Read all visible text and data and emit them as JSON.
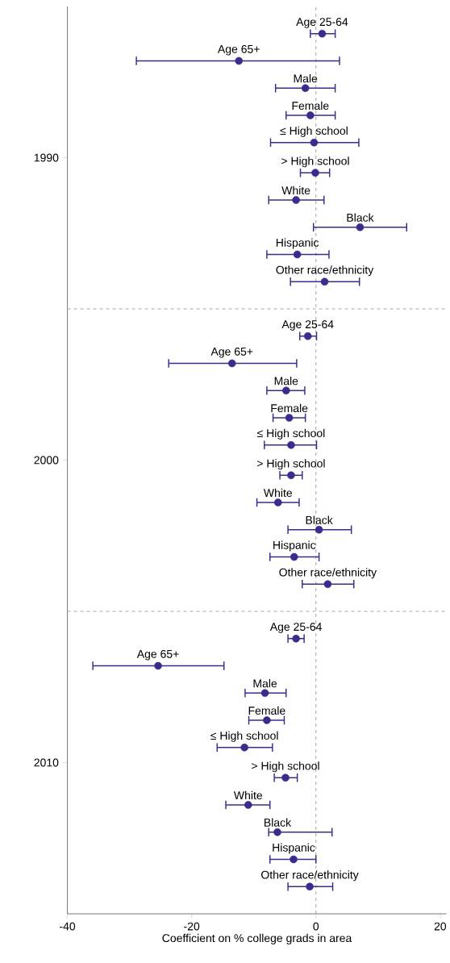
{
  "chart_data": {
    "type": "scatter",
    "xlabel": "Coefficient on % college grads in area",
    "xlim": [
      -40,
      21
    ],
    "xticks": [
      -40,
      -20,
      0,
      20
    ],
    "ylim": [
      2015,
      1985
    ],
    "yticks": [
      1990,
      2000,
      2010
    ],
    "marker": "circle",
    "grid": false,
    "ref_lines": [
      {
        "axis": "x",
        "value": 0,
        "line_style": "dashed",
        "color": "#a8a8a8"
      },
      {
        "axis": "y",
        "value": 1995,
        "line_style": "dashed",
        "color": "#a8a8a8"
      },
      {
        "axis": "y",
        "value": 2005,
        "line_style": "dashed",
        "color": "#a8a8a8"
      }
    ],
    "series": [
      {
        "color": "#3a2c8c",
        "x": [
          1.0,
          -12.4,
          -1.7,
          -0.9,
          -0.3,
          -0.1,
          -3.2,
          7.1,
          -3.0,
          1.4,
          -1.3,
          -13.5,
          -4.8,
          -4.3,
          -4.0,
          -4.0,
          -6.1,
          0.5,
          -3.5,
          1.9,
          -3.2,
          -25.4,
          -8.2,
          -7.9,
          -11.5,
          -4.9,
          -10.9,
          -6.2,
          -3.6,
          -1.0
        ],
        "values": [
          1985.9,
          1986.8,
          1987.7,
          1988.6,
          1989.5,
          1990.5,
          1991.4,
          1992.3,
          1993.2,
          1994.1,
          1995.9,
          1996.8,
          1997.7,
          1998.6,
          1999.5,
          2000.5,
          2001.4,
          2002.3,
          2003.2,
          2004.1,
          2005.9,
          2006.8,
          2007.7,
          2008.6,
          2009.5,
          2010.5,
          2011.4,
          2012.3,
          2013.2,
          2014.1
        ],
        "xerrors": [
          [
            -0.9,
            3.1
          ],
          [
            -28.9,
            3.8
          ],
          [
            -6.5,
            3.1
          ],
          [
            -4.8,
            3.1
          ],
          [
            -7.3,
            6.9
          ],
          [
            -2.5,
            2.2
          ],
          [
            -7.6,
            1.3
          ],
          [
            -0.4,
            14.6
          ],
          [
            -7.9,
            2.1
          ],
          [
            -4.1,
            7.0
          ],
          [
            -2.6,
            0.1
          ],
          [
            -23.7,
            -3.1
          ],
          [
            -7.9,
            -1.8
          ],
          [
            -6.9,
            -1.7
          ],
          [
            -8.3,
            0.1
          ],
          [
            -5.8,
            -2.2
          ],
          [
            -9.5,
            -2.7
          ],
          [
            -4.5,
            5.7
          ],
          [
            -7.4,
            0.5
          ],
          [
            -2.2,
            6.1
          ],
          [
            -4.5,
            -1.9
          ],
          [
            -35.9,
            -14.8
          ],
          [
            -11.4,
            -4.8
          ],
          [
            -10.8,
            -5.1
          ],
          [
            -15.9,
            -7.0
          ],
          [
            -6.7,
            -3.0
          ],
          [
            -14.5,
            -7.4
          ],
          [
            -7.6,
            2.6
          ],
          [
            -7.4,
            0.0
          ],
          [
            -4.5,
            2.7
          ]
        ]
      }
    ],
    "annotations": [
      {
        "text": "Age 25-64",
        "x": 1.0,
        "y": 1985.9
      },
      {
        "text": "Age 65+",
        "x": -12.4,
        "y": 1986.8
      },
      {
        "text": "Male",
        "x": -1.7,
        "y": 1987.7
      },
      {
        "text": "Female",
        "x": -0.9,
        "y": 1988.6
      },
      {
        "text": "≤ High school",
        "x": -0.3,
        "y": 1989.5
      },
      {
        "text": "> High school",
        "x": -0.1,
        "y": 1990.5
      },
      {
        "text": "White",
        "x": -3.2,
        "y": 1991.4
      },
      {
        "text": "Black",
        "x": 7.1,
        "y": 1992.3
      },
      {
        "text": "Hispanic",
        "x": -3.0,
        "y": 1993.2
      },
      {
        "text": "Other race/ethnicity",
        "x": 1.4,
        "y": 1994.1
      },
      {
        "text": "Age 25-64",
        "x": -1.3,
        "y": 1995.9
      },
      {
        "text": "Age 65+",
        "x": -13.5,
        "y": 1996.8
      },
      {
        "text": "Male",
        "x": -4.8,
        "y": 1997.7
      },
      {
        "text": "Female",
        "x": -4.3,
        "y": 1998.6
      },
      {
        "text": "≤ High school",
        "x": -4.0,
        "y": 1999.5
      },
      {
        "text": "> High school",
        "x": -4.0,
        "y": 2000.5
      },
      {
        "text": "White",
        "x": -6.1,
        "y": 2001.4
      },
      {
        "text": "Black",
        "x": 0.5,
        "y": 2002.3
      },
      {
        "text": "Hispanic",
        "x": -3.5,
        "y": 2003.2
      },
      {
        "text": "Other race/ethnicity",
        "x": 1.9,
        "y": 2004.1
      },
      {
        "text": "Age 25-64",
        "x": -3.2,
        "y": 2005.9
      },
      {
        "text": "Age 65+",
        "x": -25.4,
        "y": 2006.8
      },
      {
        "text": "Male",
        "x": -8.2,
        "y": 2007.7
      },
      {
        "text": "Female",
        "x": -7.9,
        "y": 2008.6
      },
      {
        "text": "≤ High school",
        "x": -11.5,
        "y": 2009.5
      },
      {
        "text": "> High school",
        "x": -4.9,
        "y": 2010.5
      },
      {
        "text": "White",
        "x": -10.9,
        "y": 2011.4
      },
      {
        "text": "Black",
        "x": -6.2,
        "y": 2012.3
      },
      {
        "text": "Hispanic",
        "x": -3.6,
        "y": 2013.2
      },
      {
        "text": "Other race/ethnicity",
        "x": -1.0,
        "y": 2014.1
      }
    ]
  }
}
